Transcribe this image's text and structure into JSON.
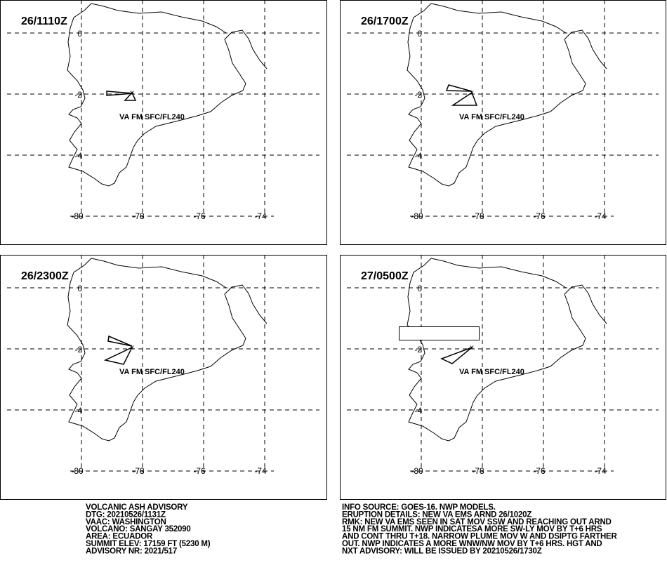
{
  "panels": [
    {
      "time": "26/1110Z",
      "lat_labels": [
        "0",
        "-2",
        "-4"
      ],
      "lon_labels": [
        "-80",
        "-78",
        "-76",
        "-74"
      ],
      "annotation": "VA FM SFC/FL240"
    },
    {
      "time": "26/1700Z",
      "lat_labels": [
        "0",
        "-2",
        "-4"
      ],
      "lon_labels": [
        "-80",
        "-78",
        "-76",
        "-74"
      ],
      "annotation": "VA FM SFC/FL240"
    },
    {
      "time": "26/2300Z",
      "lat_labels": [
        "0",
        "-2",
        "-4"
      ],
      "lon_labels": [
        "-80",
        "-78",
        "-76",
        "-74"
      ],
      "annotation": "VA FM SFC/FL240"
    },
    {
      "time": "27/0500Z",
      "lat_labels": [
        "0",
        "-2",
        "-4"
      ],
      "lon_labels": [
        "-80",
        "-78",
        "-76",
        "-74"
      ],
      "annotation": "VA FM SFC/FL240"
    }
  ],
  "advisory_left": [
    "VOLCANIC ASH ADVISORY",
    "DTG: 20210526/1131Z",
    "VAAC: WASHINGTON",
    "VOLCANO: SANGAY 352090",
    "AREA: ECUADOR",
    "SUMMIT ELEV: 17159 FT (5230 M)",
    "ADVISORY NR: 2021/517"
  ],
  "advisory_right": [
    "INFO SOURCE: GOES-16. NWP MODELS.",
    "ERUPTION DETAILS: NEW VA EMS ARND 26/1020Z",
    "RMK: NEW VA EMS SEEN IN SAT MOV SSW AND REACHING OUT ARND",
    "15 NM FM SUMMIT. NWP INDICATESA MORE SW-LY MOV BY T+6 HRS",
    "AND CONT THRU T+18. NARROW PLUME MOV W AND DSIPTG FARTHER",
    "OUT. NWP INDICATES A MORE WNW/NW MOV BY T+6 HRS. HGT AND",
    "NXT ADVISORY: WILL BE ISSUED BY 20210526/1730Z"
  ]
}
